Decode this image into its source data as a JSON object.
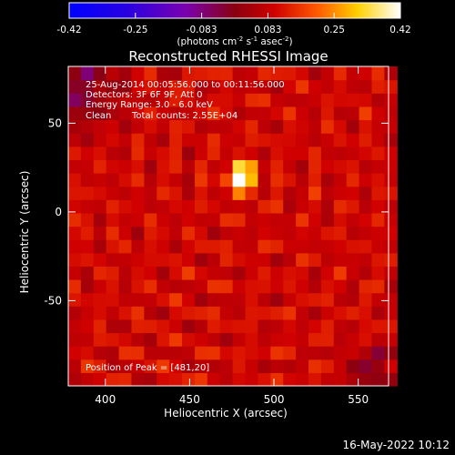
{
  "chart_data": {
    "type": "heatmap",
    "title": "Reconstructed RHESSI Image",
    "xlabel": "Heliocentric X (arcsec)",
    "ylabel": "Heliocentric Y (arcsec)",
    "xlim": [
      378,
      568
    ],
    "ylim": [
      -98,
      82
    ],
    "xticks": [
      400,
      450,
      500,
      550
    ],
    "yticks": [
      50,
      0,
      -50
    ],
    "colorbar": {
      "range": [
        -0.42,
        0.42
      ],
      "ticks": [
        "-0.42",
        "-0.25",
        "-0.083",
        "0.083",
        "0.25",
        "0.42"
      ],
      "unit_text": "(photons cm",
      "unit_exp1": "-2",
      "unit_mid": " s",
      "unit_exp2": "-1",
      "unit_mid2": " asec",
      "unit_exp3": "-2",
      "unit_end": ")"
    },
    "annotations": {
      "time_range": "25-Aug-2014 00:05:56.000 to 00:11:56.000",
      "detectors": "Detectors: 3F 6F 9F, Att 0",
      "energy": "Energy Range: 3.0 - 6.0 keV",
      "clean": "Clean",
      "counts": "Total counts: 2.55E+04",
      "peak": "Position of Peak = [481,20]"
    },
    "peak": {
      "x": 481,
      "y": 20,
      "value": 0.42
    },
    "background_level": 0.1
  },
  "footer": {
    "date": "16-May-2022 10:12"
  }
}
